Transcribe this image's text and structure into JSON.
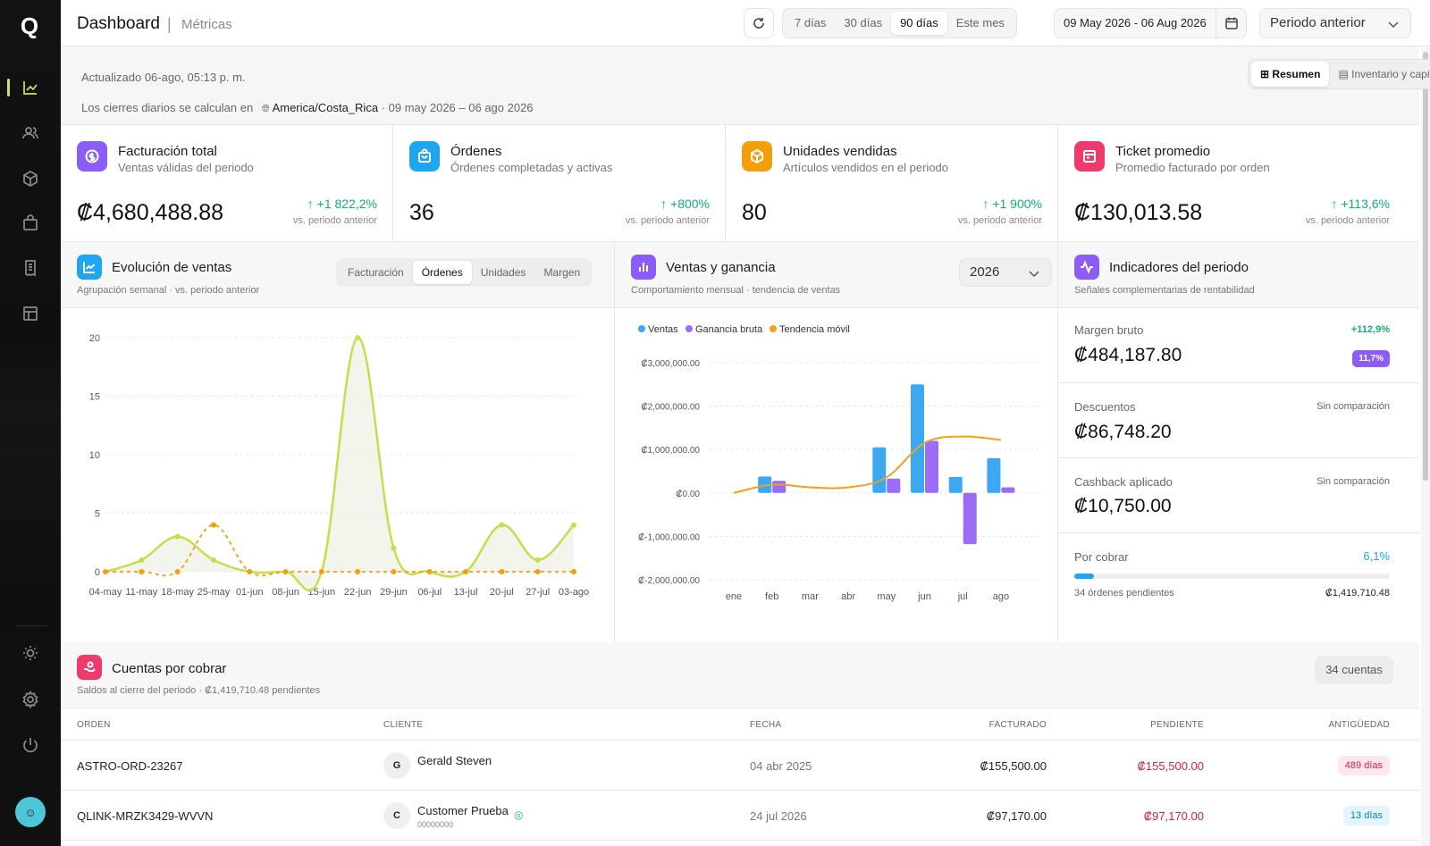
{
  "app": {
    "logo": "Q",
    "title": "Dashboard",
    "subtitle": "Métricas"
  },
  "sidebar": {
    "items": [
      {
        "name": "dashboard",
        "icon": "line-chart-icon",
        "active": true
      },
      {
        "name": "clientes",
        "icon": "users-icon"
      },
      {
        "name": "productos",
        "icon": "box-icon"
      },
      {
        "name": "ventas",
        "icon": "bag-icon"
      },
      {
        "name": "facturas",
        "icon": "receipt-icon"
      },
      {
        "name": "tienda",
        "icon": "store-icon"
      }
    ],
    "bottom": [
      {
        "icon": "sun-icon"
      },
      {
        "icon": "gear-icon"
      },
      {
        "icon": "power-icon"
      }
    ]
  },
  "toolbar": {
    "ranges": [
      "7 días",
      "30 días",
      "90 días",
      "Este mes"
    ],
    "selected_range": "90 días",
    "date_range": "09 May 2026 - 06 Aug 2026",
    "compare": "Periodo anterior"
  },
  "info": {
    "updated": "Actualizado 06-ago, 05:13 p. m.",
    "tz_prefix": "Los cierres diarios se calculan en",
    "tz": "America/Costa_Rica",
    "tz_range": "· 09 may 2026 – 06 ago 2026",
    "view_tabs": [
      "Resumen",
      "Inventario y capital"
    ]
  },
  "colors": {
    "accent": "#d4e157",
    "green": "#10b07a",
    "purple": "#8b5cf6",
    "blue": "#1ea7ef",
    "orange": "#f59e0b",
    "pink": "#ef3b6b"
  },
  "kpis": [
    {
      "title": "Facturación total",
      "subtitle": "Ventas válidas del periodo",
      "value": "₡4,680,488.88",
      "delta": "+1 822,2%",
      "compare": "vs. periodo anterior",
      "color": "#8b5cf6",
      "icon": "coin-icon"
    },
    {
      "title": "Órdenes",
      "subtitle": "Órdenes completadas y activas",
      "value": "36",
      "delta": "+800%",
      "compare": "vs. periodo anterior",
      "color": "#1ea7ef",
      "icon": "bag-icon"
    },
    {
      "title": "Unidades vendidas",
      "subtitle": "Artículos vendidos en el periodo",
      "value": "80",
      "delta": "+1 900%",
      "compare": "vs. periodo anterior",
      "color": "#f59e0b",
      "icon": "box-icon"
    },
    {
      "title": "Ticket promedio",
      "subtitle": "Promedio facturado por orden",
      "value": "₡130,013.58",
      "delta": "+113,6%",
      "compare": "vs. periodo anterior",
      "color": "#ef3b6b",
      "icon": "ticket-icon"
    }
  ],
  "evolucion": {
    "title": "Evolución de ventas",
    "subtitle": "Agrupación semanal · vs. periodo anterior",
    "tabs": [
      "Facturación",
      "Órdenes",
      "Unidades",
      "Margen"
    ],
    "selected_tab": "Órdenes"
  },
  "ventas": {
    "title": "Ventas y ganancia",
    "subtitle": "Comportamiento mensual · tendencia de ventas",
    "year": "2026",
    "legend": [
      "Ventas",
      "Ganancia bruta",
      "Tendencia móvil"
    ]
  },
  "indicadores": {
    "title": "Indicadores del periodo",
    "subtitle": "Señales complementarias de rentabilidad",
    "items": [
      {
        "label": "Margen bruto",
        "value": "₡484,187.80",
        "right": "+112,9%",
        "badge": "11,7%"
      },
      {
        "label": "Descuentos",
        "value": "₡86,748.20",
        "right": "Sin comparación"
      },
      {
        "label": "Cashback aplicado",
        "value": "₡10,750.00",
        "right": "Sin comparación"
      }
    ],
    "por_cobrar": {
      "label": "Por cobrar",
      "percent": "6,1%",
      "progress": 0.061,
      "pending": "34 órdenes pendientes",
      "amount": "₡1,419,710.48"
    }
  },
  "cuentas": {
    "title": "Cuentas por cobrar",
    "subtitle": "Saldos al cierre del periodo · ₡1,419,710.48 pendientes",
    "count": "34 cuentas",
    "columns": [
      "ORDEN",
      "CLIENTE",
      "FECHA",
      "FACTURADO",
      "PENDIENTE",
      "ANTIGÜEDAD"
    ],
    "rows": [
      {
        "orden": "ASTRO-ORD-23267",
        "initial": "G",
        "cliente": "Gerald Steven",
        "phone": "",
        "fecha": "04 abr 2025",
        "facturado": "₡155,500.00",
        "pendiente": "₡155,500.00",
        "antiguedad": "489 días",
        "badge_color": "pink"
      },
      {
        "orden": "QLINK-MRZK3429-WVVN",
        "initial": "C",
        "cliente": "Customer Prueba",
        "phone": "00000000",
        "fecha": "24 jul 2026",
        "facturado": "₡97,170.00",
        "pendiente": "₡97,170.00",
        "antiguedad": "13 días",
        "badge_color": "blue"
      }
    ]
  },
  "chart_data": [
    {
      "type": "line",
      "title": "Evolución de ventas",
      "x": [
        "04-may",
        "11-may",
        "18-may",
        "25-may",
        "01-jun",
        "08-jun",
        "15-jun",
        "22-jun",
        "29-jun",
        "06-jul",
        "13-jul",
        "20-jul",
        "27-jul",
        "03-ago"
      ],
      "series": [
        {
          "values": [
            0,
            1,
            3,
            1,
            0,
            0,
            0,
            20,
            2,
            0,
            0,
            4,
            1,
            4
          ]
        },
        {
          "values": [
            0,
            0,
            0,
            4,
            0,
            0,
            0,
            0,
            0,
            0,
            0,
            0,
            0,
            0
          ]
        }
      ],
      "ylim": [
        0,
        20
      ],
      "yticks": [
        0,
        5,
        10,
        15,
        20
      ],
      "grid": true
    },
    {
      "type": "bar",
      "title": "Ventas y ganancia",
      "categories": [
        "ene",
        "feb",
        "mar",
        "abr",
        "may",
        "jun",
        "jul",
        "ago"
      ],
      "series": [
        {
          "name": "Ventas",
          "values": [
            0,
            380000,
            0,
            0,
            1050000,
            2500000,
            370000,
            800000
          ]
        },
        {
          "name": "Ganancia bruta",
          "values": [
            0,
            280000,
            0,
            0,
            330000,
            1200000,
            -1180000,
            130000
          ]
        },
        {
          "name": "Tendencia móvil",
          "values": [
            0,
            190000,
            130000,
            130000,
            360000,
            1150000,
            1300000,
            1220000
          ]
        }
      ],
      "ylim": [
        -2000000,
        3000000
      ],
      "yticks": [
        "₡3,000,000.00",
        "₡2,000,000.00",
        "₡1,000,000.00",
        "₡0.00",
        "₡-1,000,000.00",
        "₡-2,000,000.00"
      ],
      "legend_position": "top-left",
      "grid": true
    }
  ]
}
